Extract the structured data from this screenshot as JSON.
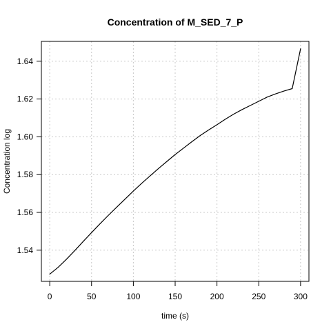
{
  "chart_data": {
    "type": "line",
    "title": "Concentration of M_SED_7_P",
    "xlabel": "time (s)",
    "ylabel": "Concentration log",
    "xlim": [
      -10,
      310
    ],
    "ylim": [
      1.5235,
      1.6505
    ],
    "grid": true,
    "x_ticks": [
      0,
      50,
      100,
      150,
      200,
      250,
      300
    ],
    "y_ticks": [
      1.54,
      1.56,
      1.58,
      1.6,
      1.62,
      1.64
    ],
    "x_tick_labels": [
      "0",
      "50",
      "100",
      "150",
      "200",
      "250",
      "300"
    ],
    "y_tick_labels": [
      "1.54",
      "1.56",
      "1.58",
      "1.60",
      "1.62",
      "1.64"
    ],
    "series": [
      {
        "x": [
          0,
          10,
          20,
          30,
          40,
          50,
          60,
          70,
          80,
          90,
          100,
          110,
          120,
          130,
          140,
          150,
          160,
          170,
          180,
          190,
          200,
          210,
          220,
          230,
          240,
          250,
          260,
          270,
          280,
          290,
          300
        ],
        "values": [
          1.5273,
          1.5309,
          1.5352,
          1.5398,
          1.5446,
          1.5493,
          1.5539,
          1.5584,
          1.5627,
          1.567,
          1.5713,
          1.5754,
          1.5793,
          1.5832,
          1.5869,
          1.5906,
          1.594,
          1.5974,
          1.6007,
          1.6036,
          1.6064,
          1.6093,
          1.612,
          1.6144,
          1.6166,
          1.6188,
          1.621,
          1.6227,
          1.6242,
          1.6255,
          1.6466
        ],
        "color": "#000000"
      }
    ]
  },
  "colors": {
    "background": "#ffffff",
    "axis": "#000000",
    "grid": "#c8c8c8",
    "line": "#000000"
  }
}
